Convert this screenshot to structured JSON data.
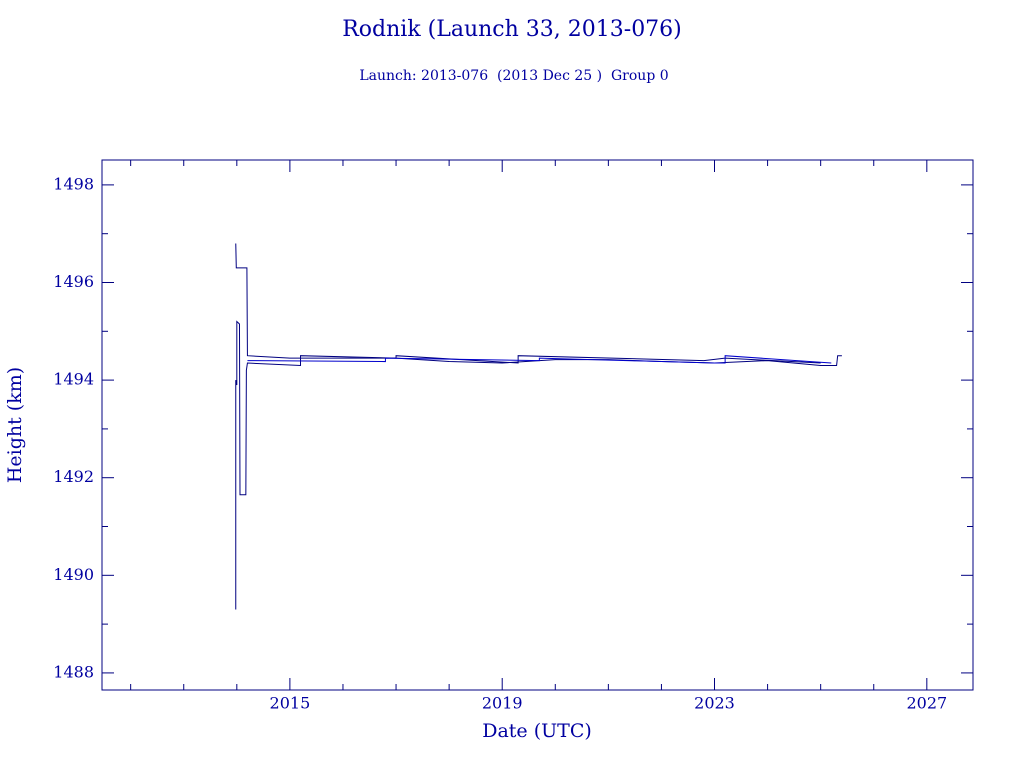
{
  "chart_data": {
    "type": "line",
    "title": "Rodnik (Launch 33, 2013-076)",
    "subtitle": "Launch: 2013-076  (2013 Dec 25 )  Group 0",
    "x_label": "Date (UTC)",
    "y_label": "Height (km)",
    "xlim": [
      2011.46,
      2027.87
    ],
    "ylim": [
      1487.65,
      1498.51
    ],
    "xticks": [
      2015,
      2019,
      2023,
      2027
    ],
    "yticks": [
      1488,
      1490,
      1492,
      1494,
      1496,
      1498
    ],
    "x_minor_ticks": [
      2012,
      2013,
      2014,
      2016,
      2017,
      2018,
      2020,
      2021,
      2022,
      2024,
      2025,
      2026
    ],
    "y_minor_ticks": [
      1489,
      1491,
      1493,
      1495,
      1497
    ],
    "series": [
      {
        "color": "#000080",
        "x": [
          2013.98,
          2013.99,
          2014.19,
          2014.2,
          2015.0,
          2016.0,
          2017.0,
          2018.0,
          2019.0,
          2020.0,
          2021.0,
          2022.0,
          2023.0,
          2024.0,
          2025.0,
          2025.3,
          2025.32,
          2025.4
        ],
        "values": [
          1496.8,
          1496.3,
          1496.3,
          1494.5,
          1494.45,
          1494.45,
          1494.45,
          1494.38,
          1494.35,
          1494.42,
          1494.42,
          1494.38,
          1494.35,
          1494.4,
          1494.3,
          1494.3,
          1494.5,
          1494.5
        ]
      },
      {
        "color": "#000080",
        "x": [
          2013.98,
          2013.98,
          2014.0,
          2014.0,
          2014.05,
          2014.06,
          2014.17,
          2014.18,
          2014.2,
          2015.2,
          2015.2,
          2017.0,
          2017.0,
          2019.3,
          2019.3,
          2022.8,
          2023.2,
          2025.0
        ],
        "values": [
          1489.3,
          1494.0,
          1493.9,
          1495.2,
          1495.15,
          1491.65,
          1491.65,
          1494.2,
          1494.35,
          1494.3,
          1494.5,
          1494.45,
          1494.5,
          1494.35,
          1494.5,
          1494.4,
          1494.45,
          1494.35
        ]
      },
      {
        "color": "#0000cc",
        "x": [
          2014.2,
          2016.8,
          2016.8,
          2019.7,
          2019.7,
          2023.0,
          2023.2,
          2023.2,
          2025.2
        ],
        "values": [
          1494.4,
          1494.38,
          1494.45,
          1494.4,
          1494.45,
          1494.35,
          1494.35,
          1494.5,
          1494.35
        ]
      }
    ]
  }
}
